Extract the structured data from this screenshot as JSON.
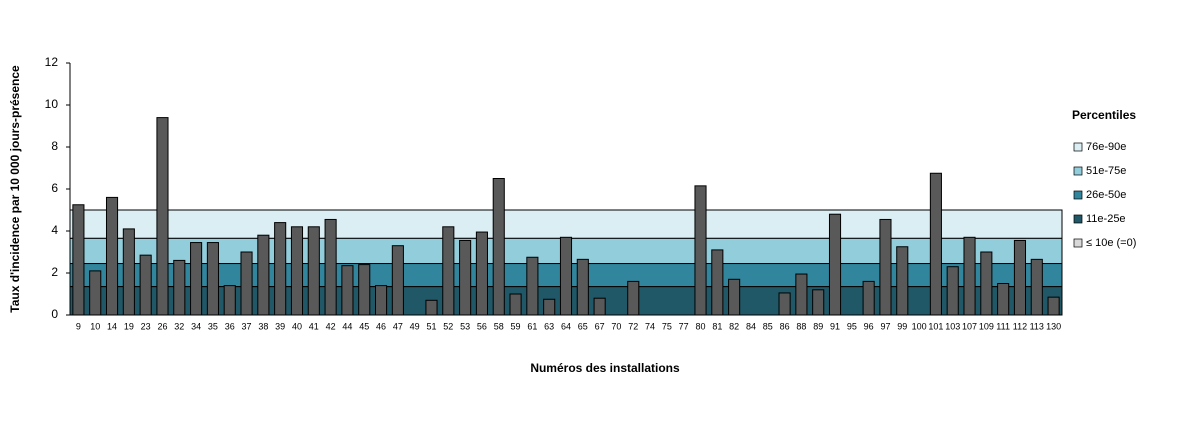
{
  "chart_data": {
    "type": "bar",
    "x_label": "Numéros des installations",
    "y_label": "Taux d'incidence par 10 000 jours-présence",
    "categories": [
      "9",
      "10",
      "14",
      "19",
      "23",
      "26",
      "32",
      "34",
      "35",
      "36",
      "37",
      "38",
      "39",
      "40",
      "41",
      "42",
      "44",
      "45",
      "46",
      "47",
      "49",
      "51",
      "52",
      "53",
      "56",
      "58",
      "59",
      "61",
      "63",
      "64",
      "65",
      "67",
      "70",
      "72",
      "74",
      "75",
      "77",
      "80",
      "81",
      "82",
      "84",
      "85",
      "86",
      "88",
      "89",
      "91",
      "95",
      "96",
      "97",
      "99",
      "100",
      "101",
      "103",
      "107",
      "109",
      "111",
      "112",
      "113",
      "130"
    ],
    "values": [
      5.25,
      2.1,
      5.6,
      4.1,
      2.85,
      9.4,
      2.6,
      3.45,
      3.45,
      1.4,
      3.0,
      3.8,
      4.4,
      4.2,
      4.2,
      4.55,
      2.35,
      2.4,
      1.4,
      3.3,
      0,
      0.7,
      4.2,
      3.55,
      3.95,
      6.5,
      1.0,
      2.75,
      0.75,
      3.7,
      2.65,
      0.8,
      0,
      1.6,
      0,
      0,
      0,
      6.15,
      3.1,
      1.7,
      0,
      0,
      1.05,
      1.95,
      1.2,
      4.8,
      0,
      1.6,
      4.55,
      3.25,
      0,
      6.75,
      2.3,
      3.7,
      3.0,
      1.5,
      3.55,
      2.65,
      0.85
    ],
    "color": "#595959",
    "ylim": [
      0,
      12
    ],
    "yticks": [
      0,
      2,
      4,
      6,
      8,
      10,
      12
    ],
    "legend_title": "Percentiles",
    "bands": [
      {
        "name": "76e-90e",
        "color": "#dbeef3",
        "from": 3.65,
        "to": 5.0
      },
      {
        "name": "51e-75e",
        "color": "#92cddc",
        "from": 2.45,
        "to": 3.65
      },
      {
        "name": "26e-50e",
        "color": "#31859c",
        "from": 1.35,
        "to": 2.45
      },
      {
        "name": "11e-25e",
        "color": "#205867",
        "from": 0,
        "to": 1.35
      },
      {
        "name": "≤ 10e (=0)",
        "color": "#d9d9d9"
      }
    ]
  }
}
